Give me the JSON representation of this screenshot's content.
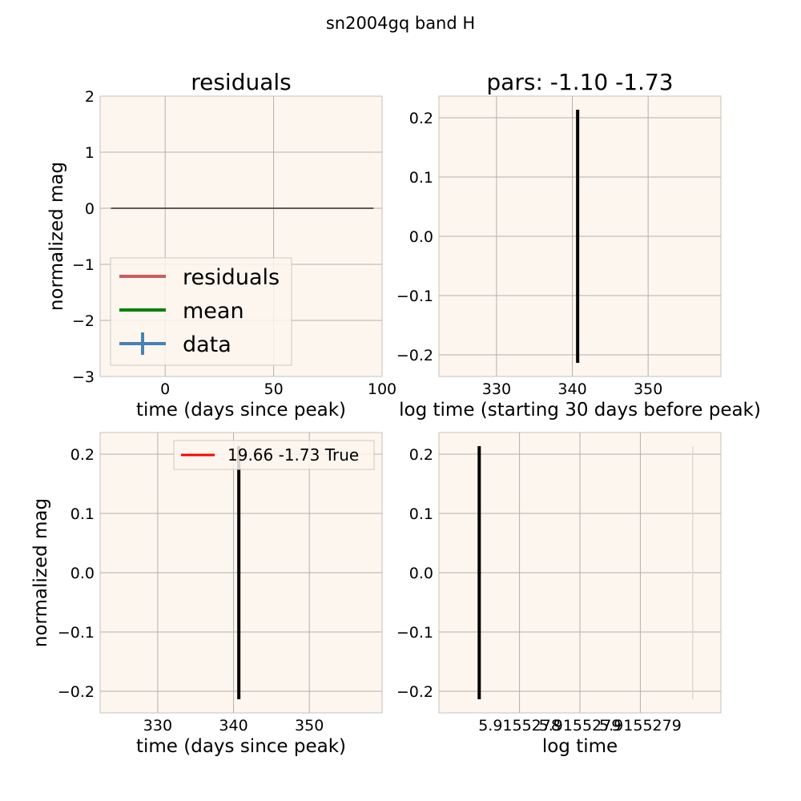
{
  "figure": {
    "suptitle": "sn2004gq band H",
    "background": "#ffffff",
    "axes_facecolor": "#fdf6ee",
    "grid_color": "#b0b0b0",
    "spine_color": "#c8c0b8"
  },
  "chart_data": [
    {
      "id": "residuals",
      "type": "line",
      "title": "residuals",
      "xlabel": "time (days since peak)",
      "ylabel": "normalized mag",
      "xlim": [
        -30,
        100
      ],
      "ylim": [
        -3,
        2
      ],
      "xticks": [
        0,
        50,
        100
      ],
      "xtick_labels": [
        "0",
        "50",
        "100"
      ],
      "yticks": [
        -3,
        -2,
        -1,
        0,
        1,
        2
      ],
      "ytick_labels": [
        "−3",
        "−2",
        "−1",
        "0",
        "1",
        "2"
      ],
      "grid": true,
      "series": [
        {
          "name": "residuals",
          "color": "#cd5c5c",
          "x": [
            -25,
            96
          ],
          "y": [
            0,
            0
          ]
        },
        {
          "name": "mean",
          "color": "#008000",
          "x": [
            -25,
            96
          ],
          "y": [
            0,
            0
          ]
        },
        {
          "name": "data",
          "color": "#4682b4",
          "x": [],
          "y": []
        }
      ],
      "legend": {
        "position": "lower-left",
        "entries": [
          "residuals",
          "mean",
          "data"
        ]
      }
    },
    {
      "id": "pars",
      "type": "scatter",
      "title": "pars: -1.10 -1.73",
      "xlabel": "log time (starting 30 days before peak)",
      "ylabel": "",
      "xlim": [
        322.4,
        359.6
      ],
      "ylim": [
        -0.2365,
        0.2365
      ],
      "xticks": [
        330,
        340,
        350
      ],
      "xtick_labels": [
        "330",
        "340",
        "350"
      ],
      "yticks": [
        -0.2,
        -0.1,
        0.0,
        0.1,
        0.2
      ],
      "ytick_labels": [
        "−0.2",
        "−0.1",
        "0.0",
        "0.1",
        "0.2"
      ],
      "grid": true,
      "points": [
        {
          "x": 340.7,
          "y": 0.0,
          "yerr": 0.2135,
          "color": "#000000"
        }
      ]
    },
    {
      "id": "fit",
      "type": "scatter",
      "title": "",
      "xlabel": "time (days since peak)",
      "ylabel": "normalized mag",
      "xlim": [
        322.4,
        359.6
      ],
      "ylim": [
        -0.2365,
        0.2365
      ],
      "xticks": [
        330,
        340,
        350
      ],
      "xtick_labels": [
        "330",
        "340",
        "350"
      ],
      "yticks": [
        -0.2,
        -0.1,
        0.0,
        0.1,
        0.2
      ],
      "ytick_labels": [
        "−0.2",
        "−0.1",
        "0.0",
        "0.1",
        "0.2"
      ],
      "grid": true,
      "points": [
        {
          "x": 340.7,
          "y": 0.0,
          "yerr": 0.2135,
          "color": "#000000"
        }
      ],
      "legend": {
        "position": "top-right",
        "entries": [
          {
            "label": "19.66 -1.73 True",
            "color": "#ff0000"
          }
        ]
      }
    },
    {
      "id": "logtime",
      "type": "scatter",
      "title": "",
      "xlabel": "log time",
      "ylabel": "",
      "xlim": [
        5.9155277,
        5.91552805
      ],
      "ylim": [
        -0.2365,
        0.2365
      ],
      "xticks": [
        5.9155278,
        5.915527875,
        5.91552795
      ],
      "xtick_labels": [
        "5.9155278",
        "5.9155279",
        "5.9155279"
      ],
      "yticks": [
        -0.2,
        -0.1,
        0.0,
        0.1,
        0.2
      ],
      "ytick_labels": [
        "−0.2",
        "−0.1",
        "0.0",
        "0.1",
        "0.2"
      ],
      "grid": true,
      "points": [
        {
          "x": 5.91552775,
          "y": 0.0,
          "yerr": 0.2135,
          "color": "#000000"
        },
        {
          "x": 5.915528015,
          "y": 0.0,
          "yerr": 0.2135,
          "color": "#e0d8d0"
        }
      ]
    }
  ]
}
